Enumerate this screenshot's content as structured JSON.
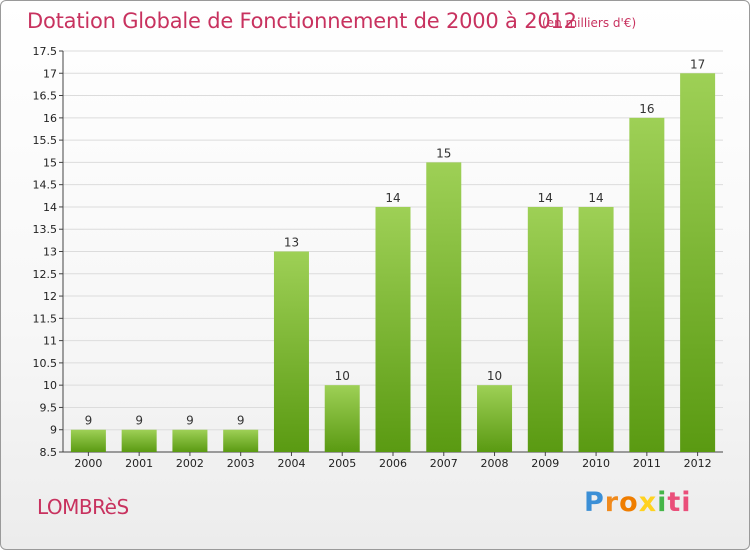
{
  "header": {
    "title": "Dotation Globale de Fonctionnement de 2000 à 2012",
    "subtitle": "(en milliers d'€)"
  },
  "footer": {
    "commune": "LOMBRèS",
    "logo_text": "Proxiti",
    "logo_icon": "proxiti-logo"
  },
  "colors": {
    "title": "#c8325f",
    "bar_top": "#9ed056",
    "bar_bottom": "#5a9a12",
    "grid": "#dcdcdc"
  },
  "chart_data": {
    "type": "bar",
    "title": "Dotation Globale de Fonctionnement de 2000 à 2012",
    "subtitle": "(en milliers d'€)",
    "xlabel": "",
    "ylabel": "",
    "categories": [
      "2000",
      "2001",
      "2002",
      "2003",
      "2004",
      "2005",
      "2006",
      "2007",
      "2008",
      "2009",
      "2010",
      "2011",
      "2012"
    ],
    "values": [
      9,
      9,
      9,
      9,
      13,
      10,
      14,
      15,
      10,
      14,
      14,
      16,
      17
    ],
    "ylim": [
      8.5,
      17.5
    ],
    "yticks": [
      "8.5",
      "9",
      "9.5",
      "10",
      "10.5",
      "11",
      "11.5",
      "12",
      "12.5",
      "13",
      "13.5",
      "14",
      "14.5",
      "15",
      "15.5",
      "16",
      "16.5",
      "17",
      "17.5"
    ],
    "grid": true,
    "legend": "none"
  }
}
